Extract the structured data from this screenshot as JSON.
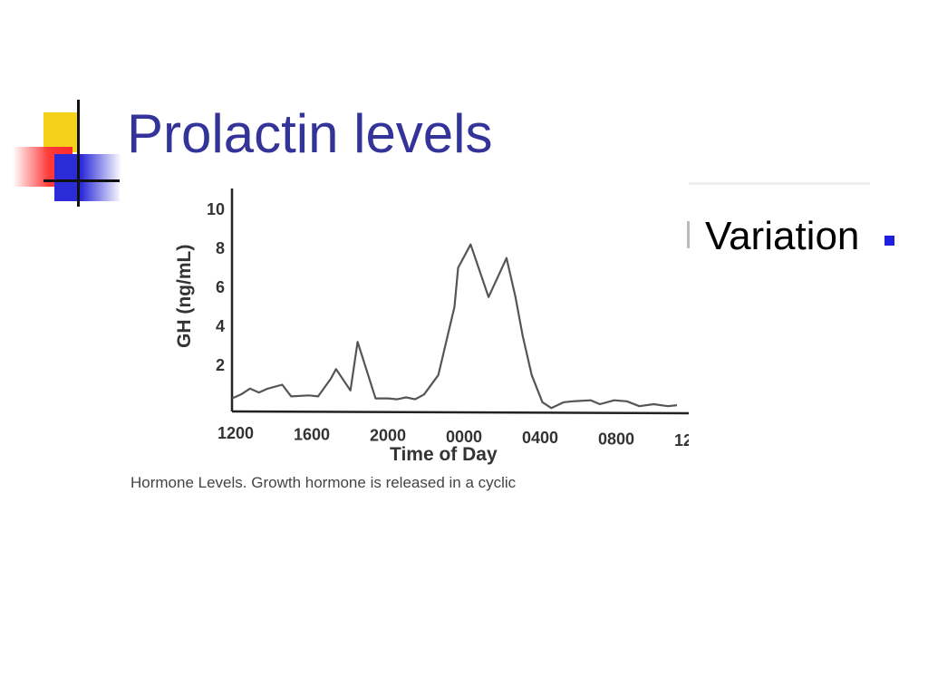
{
  "slide": {
    "title": "Prolactin levels",
    "bullet": "Variation",
    "accent_color": "#333399",
    "bullet_color": "#1f1fe0"
  },
  "chart_data": {
    "type": "line",
    "title": "",
    "xlabel": "Time of Day",
    "ylabel": "GH (ng/mL)",
    "x_tick_labels": [
      "1200",
      "1600",
      "2000",
      "0000",
      "0400",
      "0800",
      "12"
    ],
    "y_tick_labels": [
      "2",
      "4",
      "6",
      "8",
      "10"
    ],
    "ylim": [
      0,
      10
    ],
    "xlim": [
      0,
      26
    ],
    "caption": "Hormone Levels. Growth hormone is released in a cyclic",
    "series": [
      {
        "x": [
          0,
          0.5,
          1,
          1.5,
          2,
          2.8,
          3.3,
          4.3,
          4.8,
          5.5,
          5.8,
          6.6,
          7,
          8,
          8.7,
          9.2,
          9.7,
          10.2,
          10.7,
          11.5,
          12.4,
          12.6,
          13.3,
          14.3,
          15.3,
          15.8,
          16.2,
          16.7,
          17.3,
          17.8,
          18.5,
          19,
          20,
          20.5,
          21.3,
          22,
          22.7,
          23.5,
          24.3,
          24.8
        ],
        "y": [
          0.3,
          0.5,
          0.8,
          0.6,
          0.8,
          1.0,
          0.4,
          0.45,
          0.4,
          1.3,
          1.8,
          0.7,
          3.2,
          0.3,
          0.3,
          0.25,
          0.35,
          0.25,
          0.5,
          1.5,
          5.0,
          7.0,
          8.2,
          5.5,
          7.5,
          5.5,
          3.5,
          1.5,
          0.1,
          -0.2,
          0.1,
          0.15,
          0.2,
          0.0,
          0.2,
          0.15,
          -0.1,
          0.0,
          -0.1,
          -0.05
        ],
        "color": "#555555"
      }
    ]
  }
}
